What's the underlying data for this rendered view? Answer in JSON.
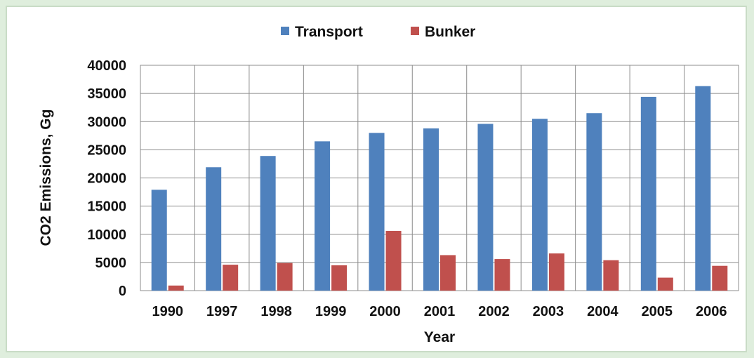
{
  "chart_data": {
    "type": "bar",
    "categories": [
      "1990",
      "1997",
      "1998",
      "1999",
      "2000",
      "2001",
      "2002",
      "2003",
      "2004",
      "2005",
      "2006"
    ],
    "series": [
      {
        "name": "Transport",
        "color": "#4f81bd",
        "values": [
          17900,
          21900,
          23900,
          26500,
          28000,
          28800,
          29600,
          30500,
          31500,
          34400,
          36300
        ]
      },
      {
        "name": "Bunker",
        "color": "#c0504d",
        "values": [
          900,
          4600,
          4900,
          4500,
          10600,
          6300,
          5600,
          6600,
          5400,
          2300,
          4400
        ]
      }
    ],
    "xlabel": "Year",
    "ylabel": "CO2 Emissions, Gg",
    "ylim": [
      0,
      40000
    ],
    "yticks": [
      "0",
      "5000",
      "10000",
      "15000",
      "20000",
      "25000",
      "30000",
      "35000",
      "40000"
    ],
    "grid": true,
    "legend_position": "top"
  }
}
